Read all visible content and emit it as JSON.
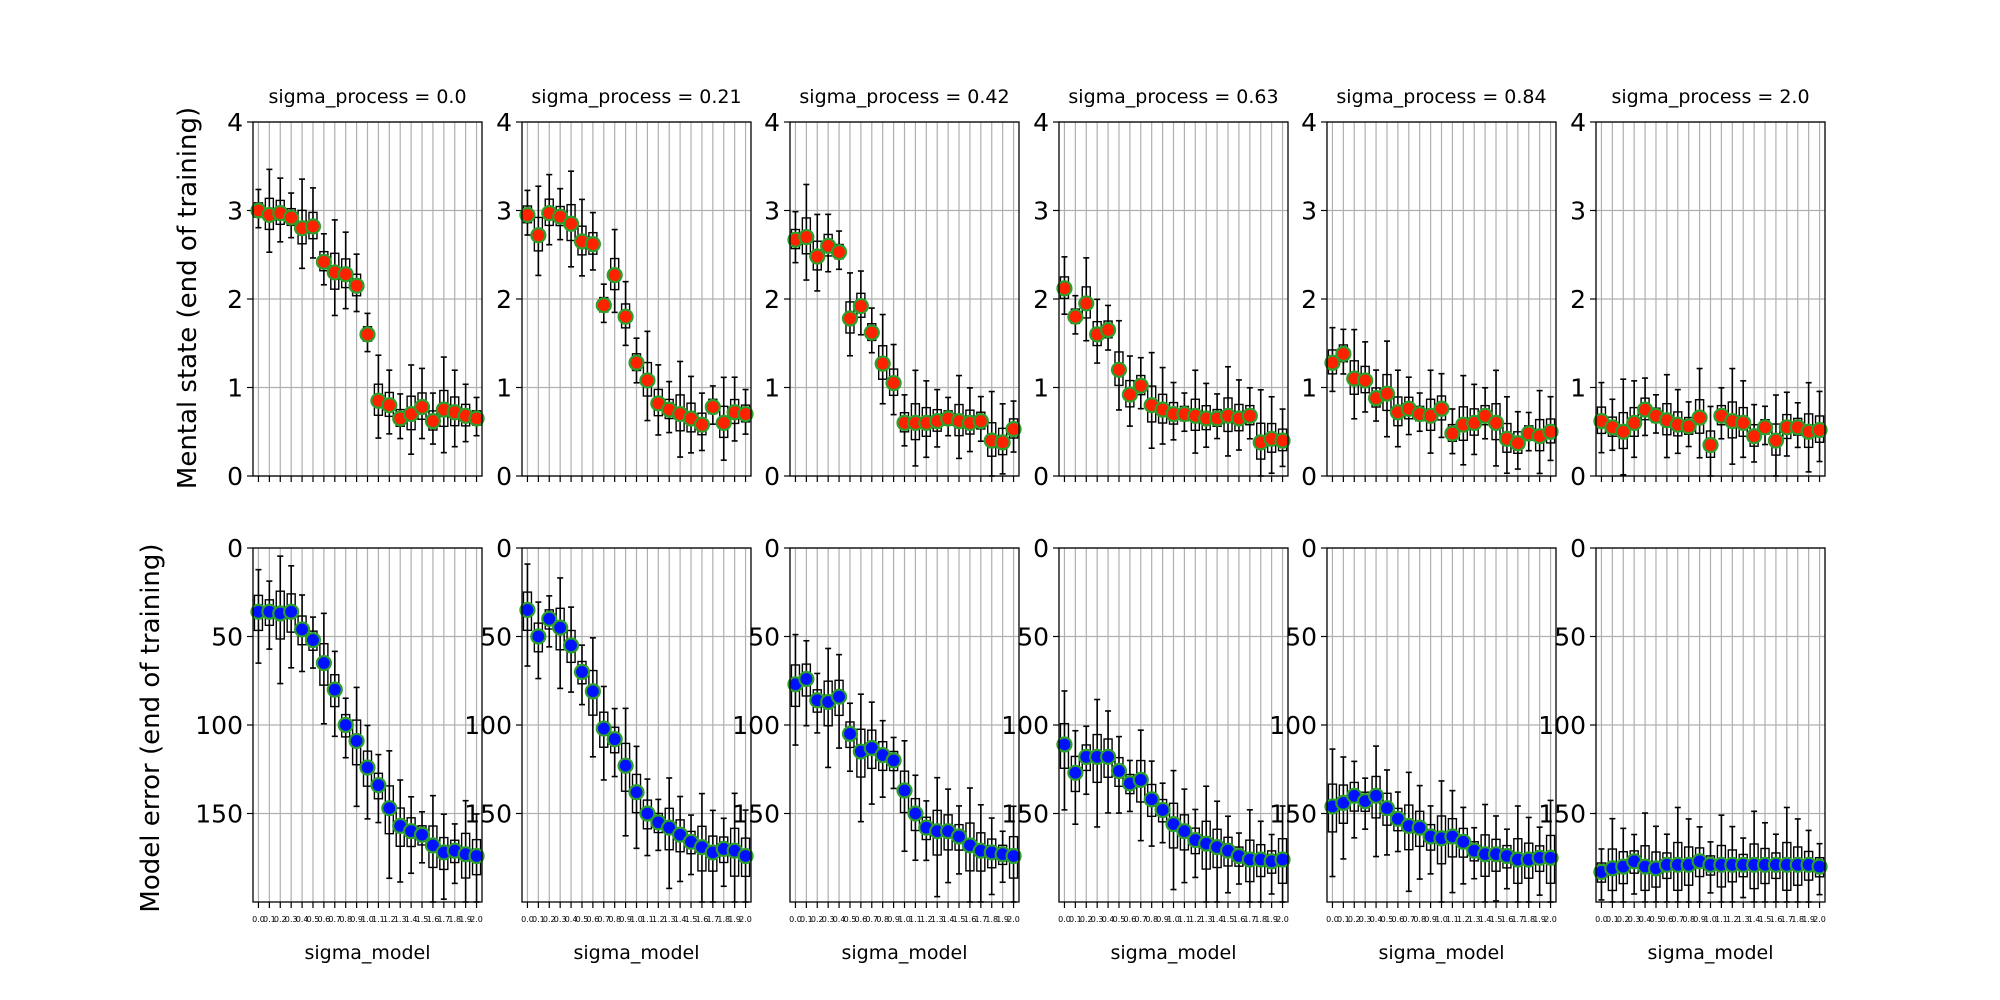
{
  "chart_data": {
    "type": "box",
    "rows": [
      {
        "ylabel": "Mental state (end of training)",
        "ylim": [
          0,
          4
        ],
        "yticks": [
          "0",
          "1",
          "2",
          "3",
          "4"
        ],
        "inverted": false,
        "marker_color": "#ff2200"
      },
      {
        "ylabel": "Model error (end of training)",
        "ylim": [
          200,
          0
        ],
        "yticks": [
          "0",
          "50",
          "100",
          "150"
        ],
        "inverted": true,
        "marker_color": "#0011ff"
      }
    ],
    "marker_edge_color": "#2ca02c",
    "xlabel": "sigma_model",
    "x": [
      0.0,
      0.1,
      0.2,
      0.3,
      0.4,
      0.5,
      0.6,
      0.7,
      0.8,
      0.9,
      1.0,
      1.1,
      1.2,
      1.3,
      1.4,
      1.5,
      1.6,
      1.7,
      1.8,
      1.9,
      2.0
    ],
    "xtick_labels": [
      "0.0",
      "0.1",
      "0.2",
      "0.3",
      "0.4",
      "0.5",
      "0.6",
      "0.7",
      "0.8",
      "0.9",
      "1.0",
      "1.1",
      "1.2",
      "1.3",
      "1.4",
      "1.5",
      "1.6",
      "1.7",
      "1.8",
      "1.9",
      "2.0"
    ],
    "grid": true,
    "panels": [
      {
        "title": "sigma_process = 0.0",
        "mental": [
          3.0,
          2.95,
          2.97,
          2.92,
          2.8,
          2.82,
          2.42,
          2.3,
          2.28,
          2.15,
          1.6,
          0.85,
          0.8,
          0.65,
          0.7,
          0.78,
          0.62,
          0.75,
          0.72,
          0.68,
          0.65
        ],
        "error": [
          36,
          36,
          37,
          36,
          46,
          52,
          65,
          80,
          100,
          109,
          124,
          134,
          147,
          157,
          160,
          162,
          168,
          172,
          171,
          173,
          174
        ]
      },
      {
        "title": "sigma_process = 0.21",
        "mental": [
          2.95,
          2.72,
          2.97,
          2.93,
          2.85,
          2.65,
          2.62,
          1.93,
          2.27,
          1.8,
          1.28,
          1.08,
          0.82,
          0.75,
          0.7,
          0.65,
          0.58,
          0.78,
          0.6,
          0.72,
          0.7
        ],
        "error": [
          35,
          50,
          40,
          45,
          55,
          70,
          81,
          102,
          108,
          123,
          138,
          150,
          155,
          158,
          162,
          166,
          169,
          172,
          170,
          171,
          174
        ]
      },
      {
        "title": "sigma_process = 0.42",
        "mental": [
          2.67,
          2.7,
          2.48,
          2.6,
          2.53,
          1.78,
          1.92,
          1.62,
          1.27,
          1.05,
          0.6,
          0.6,
          0.6,
          0.62,
          0.65,
          0.62,
          0.6,
          0.62,
          0.4,
          0.38,
          0.53
        ],
        "error": [
          77,
          74,
          86,
          87,
          84,
          105,
          115,
          113,
          117,
          120,
          137,
          150,
          158,
          160,
          160,
          163,
          168,
          171,
          172,
          173,
          174
        ]
      },
      {
        "title": "sigma_process = 0.63",
        "mental": [
          2.12,
          1.8,
          1.95,
          1.6,
          1.65,
          1.2,
          0.92,
          1.02,
          0.8,
          0.75,
          0.7,
          0.7,
          0.68,
          0.65,
          0.65,
          0.68,
          0.65,
          0.68,
          0.38,
          0.42,
          0.4
        ],
        "error": [
          111,
          127,
          118,
          118,
          118,
          126,
          133,
          131,
          142,
          148,
          156,
          160,
          165,
          167,
          169,
          171,
          174,
          176,
          176,
          177,
          176
        ]
      },
      {
        "title": "sigma_process = 0.84",
        "mental": [
          1.28,
          1.38,
          1.1,
          1.08,
          0.88,
          0.93,
          0.72,
          0.76,
          0.7,
          0.68,
          0.76,
          0.48,
          0.58,
          0.6,
          0.68,
          0.6,
          0.42,
          0.37,
          0.48,
          0.45,
          0.5
        ],
        "error": [
          146,
          144,
          140,
          143,
          140,
          147,
          153,
          157,
          158,
          163,
          164,
          163,
          166,
          171,
          173,
          173,
          174,
          176,
          176,
          175,
          175
        ]
      },
      {
        "title": "sigma_process = 2.0",
        "mental": [
          0.62,
          0.55,
          0.5,
          0.6,
          0.75,
          0.68,
          0.63,
          0.58,
          0.56,
          0.66,
          0.35,
          0.68,
          0.62,
          0.6,
          0.45,
          0.55,
          0.4,
          0.55,
          0.55,
          0.5,
          0.52
        ],
        "error": [
          183,
          181,
          180,
          177,
          180,
          181,
          179,
          179,
          179,
          177,
          179,
          179,
          179,
          179,
          179,
          179,
          179,
          179,
          179,
          179,
          180
        ]
      }
    ]
  }
}
